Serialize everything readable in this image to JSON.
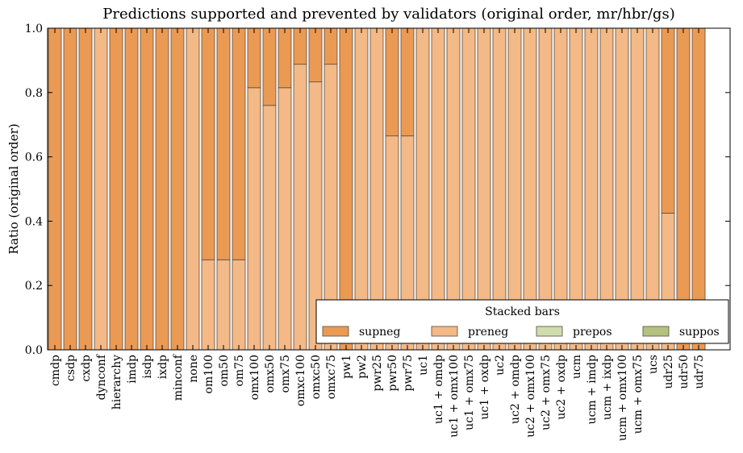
{
  "chart_data": {
    "type": "bar",
    "stacked": true,
    "title": "Predictions supported and prevented by validators (original order, mr/hbr/gs)",
    "xlabel": "",
    "ylabel": "Ratio (original order)",
    "ylim": [
      0,
      1.0
    ],
    "yticks": [
      "0.0",
      "0.2",
      "0.4",
      "0.6",
      "0.8",
      "1.0"
    ],
    "grid": false,
    "legend": {
      "title": "Stacked bars",
      "placement": "bottom-right",
      "entries": [
        "supneg",
        "preneg",
        "prepos",
        "suppos"
      ]
    },
    "categories": [
      "cmdp",
      "csdp",
      "cxdp",
      "dynconf",
      "hierarchy",
      "imdp",
      "isdp",
      "ixdp",
      "minconf",
      "none",
      "om100",
      "om50",
      "om75",
      "omx100",
      "omx50",
      "omx75",
      "omxc100",
      "omxc50",
      "omxc75",
      "pw1",
      "pw2",
      "pwr25",
      "pwr50",
      "pwr75",
      "uc1",
      "uc1 + omdp",
      "uc1 + omx100",
      "uc1 + omx75",
      "uc1 + oxdp",
      "uc2",
      "uc2 + omdp",
      "uc2 + omx100",
      "uc2 + omx75",
      "uc2 + oxdp",
      "ucm",
      "ucm + imdp",
      "ucm + ixdp",
      "ucm + omx100",
      "ucm + omx75",
      "ucs",
      "udr25",
      "udr50",
      "udr75"
    ],
    "series": [
      {
        "name": "preneg",
        "color": "#f3b986",
        "values": [
          0,
          0,
          0,
          1.0,
          0,
          0,
          0,
          0,
          0,
          1.0,
          0.28,
          0.28,
          0.28,
          0.815,
          0.76,
          0.815,
          0.888,
          0.833,
          0.888,
          0,
          1.0,
          1.0,
          0.665,
          0.665,
          1.0,
          1.0,
          1.0,
          1.0,
          1.0,
          1.0,
          1.0,
          1.0,
          1.0,
          1.0,
          1.0,
          1.0,
          1.0,
          1.0,
          1.0,
          1.0,
          0.425,
          0,
          0
        ]
      },
      {
        "name": "supneg",
        "color": "#eb9a54",
        "values": [
          1.0,
          1.0,
          1.0,
          0,
          1.0,
          1.0,
          1.0,
          1.0,
          1.0,
          0,
          0.72,
          0.72,
          0.72,
          0.185,
          0.24,
          0.185,
          0.112,
          0.167,
          0.112,
          1.0,
          0,
          0,
          0.335,
          0.335,
          0,
          0,
          0,
          0,
          0,
          0,
          0,
          0,
          0,
          0,
          0,
          0,
          0,
          0,
          0,
          0,
          0.575,
          1.0,
          1.0
        ]
      },
      {
        "name": "prepos",
        "color": "#cfdcae",
        "values": [
          0,
          0,
          0,
          0,
          0,
          0,
          0,
          0,
          0,
          0,
          0,
          0,
          0,
          0,
          0,
          0,
          0,
          0,
          0,
          0,
          0,
          0,
          0,
          0,
          0,
          0,
          0,
          0,
          0,
          0,
          0,
          0,
          0,
          0,
          0,
          0,
          0,
          0,
          0,
          0,
          0,
          0,
          0
        ]
      },
      {
        "name": "suppos",
        "color": "#b3c27e",
        "values": [
          0,
          0,
          0,
          0,
          0,
          0,
          0,
          0,
          0,
          0,
          0,
          0,
          0,
          0,
          0,
          0,
          0,
          0,
          0,
          0,
          0,
          0,
          0,
          0,
          0,
          0,
          0,
          0,
          0,
          0,
          0,
          0,
          0,
          0,
          0,
          0,
          0,
          0,
          0,
          0,
          0,
          0,
          0
        ]
      }
    ]
  }
}
